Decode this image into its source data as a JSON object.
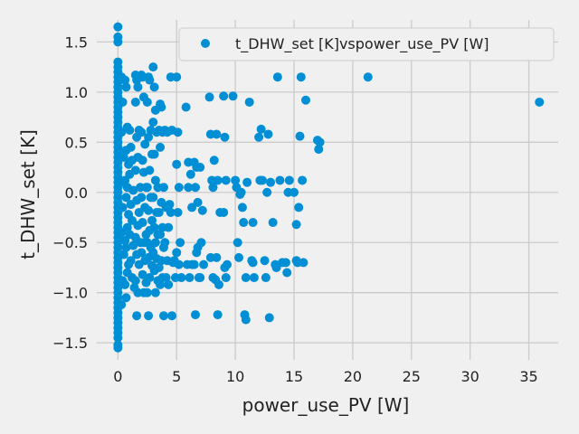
{
  "chart_data": {
    "type": "scatter",
    "title": "",
    "xlabel": "power_use_PV [W]",
    "ylabel": "t_DHW_set [K]",
    "xlim": [
      -1.8,
      37.5
    ],
    "ylim": [
      -1.67,
      1.72
    ],
    "xticks": [
      0,
      5,
      10,
      15,
      20,
      25,
      30,
      35
    ],
    "yticks": [
      -1.5,
      -1.0,
      -0.5,
      0.0,
      0.5,
      1.0,
      1.5
    ],
    "xtick_labels": [
      "0",
      "5",
      "10",
      "15",
      "20",
      "25",
      "30",
      "35"
    ],
    "ytick_labels": [
      "−1.5",
      "−1.0",
      "−0.5",
      "0.0",
      "0.5",
      "1.0",
      "1.5"
    ],
    "grid": true,
    "legend": {
      "position": "top-right",
      "entries": [
        "t_DHW_set [K]vspower_use_PV [W]"
      ]
    },
    "colors": {
      "marker": "#008fd5",
      "background": "#f0f0f0",
      "grid": "#cbcbcb",
      "text": "#222222"
    },
    "series": [
      {
        "name": "t_DHW_set [K]vspower_use_PV [W]",
        "points": [
          [
            0,
            1.65
          ],
          [
            0,
            1.55
          ],
          [
            0,
            1.5
          ],
          [
            0,
            1.3
          ],
          [
            0,
            1.25
          ],
          [
            0,
            1.2
          ],
          [
            0,
            1.15
          ],
          [
            0,
            1.1
          ],
          [
            0,
            1.05
          ],
          [
            0,
            1.0
          ],
          [
            0,
            0.95
          ],
          [
            0,
            0.9
          ],
          [
            0,
            0.85
          ],
          [
            0,
            0.8
          ],
          [
            0,
            0.75
          ],
          [
            0,
            0.7
          ],
          [
            0,
            0.65
          ],
          [
            0,
            0.6
          ],
          [
            0,
            0.55
          ],
          [
            0,
            0.5
          ],
          [
            0,
            0.45
          ],
          [
            0,
            0.4
          ],
          [
            0,
            0.35
          ],
          [
            0,
            0.3
          ],
          [
            0,
            0.25
          ],
          [
            0,
            0.2
          ],
          [
            0,
            0.15
          ],
          [
            0,
            0.1
          ],
          [
            0,
            0.05
          ],
          [
            0,
            0.0
          ],
          [
            0,
            -0.05
          ],
          [
            0,
            -0.1
          ],
          [
            0,
            -0.15
          ],
          [
            0,
            -0.2
          ],
          [
            0,
            -0.25
          ],
          [
            0,
            -0.3
          ],
          [
            0,
            -0.35
          ],
          [
            0,
            -0.4
          ],
          [
            0,
            -0.45
          ],
          [
            0,
            -0.5
          ],
          [
            0,
            -0.55
          ],
          [
            0,
            -0.6
          ],
          [
            0,
            -0.65
          ],
          [
            0,
            -0.7
          ],
          [
            0,
            -0.75
          ],
          [
            0,
            -0.8
          ],
          [
            0,
            -0.85
          ],
          [
            0,
            -0.9
          ],
          [
            0,
            -0.95
          ],
          [
            0,
            -1.0
          ],
          [
            0,
            -1.05
          ],
          [
            0,
            -1.1
          ],
          [
            0,
            -1.15
          ],
          [
            0,
            -1.2
          ],
          [
            0,
            -1.25
          ],
          [
            0,
            -1.3
          ],
          [
            0,
            -1.35
          ],
          [
            0,
            -1.4
          ],
          [
            0,
            -1.45
          ],
          [
            0,
            -1.52
          ],
          [
            0,
            -1.55
          ],
          [
            0.3,
            1.15
          ],
          [
            0.4,
            0.9
          ],
          [
            0.3,
            0.6
          ],
          [
            0.5,
            0.35
          ],
          [
            0.3,
            0.1
          ],
          [
            0.4,
            -0.15
          ],
          [
            0.3,
            -0.4
          ],
          [
            0.5,
            -0.62
          ],
          [
            0.4,
            -0.88
          ],
          [
            0.3,
            -1.12
          ],
          [
            0.6,
            1.12
          ],
          [
            0.7,
            1.05
          ],
          [
            0.8,
            0.65
          ],
          [
            0.7,
            0.42
          ],
          [
            0.9,
            0.28
          ],
          [
            0.6,
            0.12
          ],
          [
            0.8,
            0.05
          ],
          [
            0.7,
            -0.05
          ],
          [
            0.9,
            -0.22
          ],
          [
            0.8,
            -0.35
          ],
          [
            0.6,
            -0.48
          ],
          [
            0.7,
            -0.55
          ],
          [
            0.9,
            -0.72
          ],
          [
            0.8,
            -0.8
          ],
          [
            0.6,
            -0.92
          ],
          [
            0.7,
            -1.05
          ],
          [
            1.0,
            0.62
          ],
          [
            1.1,
            0.45
          ],
          [
            1.2,
            0.32
          ],
          [
            1.0,
            0.18
          ],
          [
            1.3,
            0.02
          ],
          [
            1.1,
            -0.12
          ],
          [
            1.2,
            -0.28
          ],
          [
            1.0,
            -0.42
          ],
          [
            1.3,
            -0.53
          ],
          [
            1.1,
            -0.68
          ],
          [
            1.2,
            -0.85
          ],
          [
            1.4,
            -0.95
          ],
          [
            1.5,
            1.17
          ],
          [
            1.6,
            1.12
          ],
          [
            1.7,
            1.05
          ],
          [
            1.5,
            0.9
          ],
          [
            1.8,
            0.62
          ],
          [
            1.6,
            0.55
          ],
          [
            1.7,
            0.35
          ],
          [
            1.5,
            0.22
          ],
          [
            1.9,
            0.05
          ],
          [
            1.6,
            -0.08
          ],
          [
            1.8,
            -0.2
          ],
          [
            1.7,
            -0.33
          ],
          [
            1.5,
            -0.45
          ],
          [
            1.9,
            -0.5
          ],
          [
            1.6,
            -0.62
          ],
          [
            1.8,
            -0.72
          ],
          [
            1.5,
            -0.88
          ],
          [
            1.7,
            -1.0
          ],
          [
            1.6,
            -1.23
          ],
          [
            2.0,
            1.17
          ],
          [
            2.1,
            1.15
          ],
          [
            2.2,
            0.95
          ],
          [
            2.0,
            0.6
          ],
          [
            2.3,
            0.48
          ],
          [
            2.1,
            0.32
          ],
          [
            2.2,
            0.2
          ],
          [
            2.4,
            0.05
          ],
          [
            2.0,
            -0.05
          ],
          [
            2.3,
            -0.15
          ],
          [
            2.1,
            -0.3
          ],
          [
            2.4,
            -0.42
          ],
          [
            2.2,
            -0.5
          ],
          [
            2.0,
            -0.6
          ],
          [
            2.3,
            -0.68
          ],
          [
            2.1,
            -0.82
          ],
          [
            2.4,
            -0.9
          ],
          [
            2.2,
            -1.0
          ],
          [
            2.6,
            1.15
          ],
          [
            2.7,
            1.12
          ],
          [
            2.5,
            0.9
          ],
          [
            2.8,
            0.62
          ],
          [
            2.6,
            0.55
          ],
          [
            2.9,
            0.38
          ],
          [
            2.7,
            0.22
          ],
          [
            2.5,
            0.05
          ],
          [
            2.8,
            -0.05
          ],
          [
            2.6,
            -0.18
          ],
          [
            2.9,
            -0.28
          ],
          [
            2.7,
            -0.38
          ],
          [
            2.5,
            -0.5
          ],
          [
            2.8,
            -0.55
          ],
          [
            2.6,
            -0.65
          ],
          [
            2.9,
            -0.73
          ],
          [
            2.7,
            -0.85
          ],
          [
            2.5,
            -1.0
          ],
          [
            2.6,
            -1.23
          ],
          [
            3.0,
            1.25
          ],
          [
            3.1,
            1.05
          ],
          [
            3.2,
            0.82
          ],
          [
            3.0,
            0.7
          ],
          [
            3.3,
            0.6
          ],
          [
            3.1,
            0.38
          ],
          [
            3.2,
            0.12
          ],
          [
            3.4,
            0.05
          ],
          [
            3.0,
            -0.05
          ],
          [
            3.3,
            -0.2
          ],
          [
            3.1,
            -0.35
          ],
          [
            3.4,
            -0.42
          ],
          [
            3.2,
            -0.5
          ],
          [
            3.0,
            -0.6
          ],
          [
            3.3,
            -0.66
          ],
          [
            3.1,
            -0.78
          ],
          [
            3.4,
            -0.88
          ],
          [
            3.2,
            -1.0
          ],
          [
            3.6,
            0.88
          ],
          [
            3.7,
            0.85
          ],
          [
            3.5,
            0.62
          ],
          [
            3.8,
            0.6
          ],
          [
            3.6,
            0.45
          ],
          [
            3.9,
            0.05
          ],
          [
            3.7,
            -0.1
          ],
          [
            3.5,
            -0.2
          ],
          [
            3.8,
            -0.35
          ],
          [
            3.6,
            -0.42
          ],
          [
            3.9,
            -0.55
          ],
          [
            3.7,
            -0.68
          ],
          [
            3.5,
            -0.75
          ],
          [
            3.8,
            -0.85
          ],
          [
            3.6,
            -0.92
          ],
          [
            3.9,
            -1.23
          ],
          [
            4.0,
            0.62
          ],
          [
            4.2,
            0.6
          ],
          [
            4.1,
            -0.15
          ],
          [
            4.3,
            -0.35
          ],
          [
            4.0,
            -0.5
          ],
          [
            4.2,
            -0.68
          ],
          [
            4.1,
            -0.85
          ],
          [
            4.3,
            -0.92
          ],
          [
            4.4,
            -0.12
          ],
          [
            4.5,
            1.15
          ],
          [
            4.6,
            0.62
          ],
          [
            4.5,
            -0.2
          ],
          [
            4.7,
            -0.7
          ],
          [
            4.6,
            -1.23
          ],
          [
            4.8,
            -0.68
          ],
          [
            4.9,
            -0.85
          ],
          [
            5.0,
            1.15
          ],
          [
            5.1,
            0.6
          ],
          [
            5.0,
            0.28
          ],
          [
            5.2,
            0.05
          ],
          [
            5.1,
            -0.2
          ],
          [
            5.3,
            -0.5
          ],
          [
            5.0,
            -0.6
          ],
          [
            5.2,
            -0.72
          ],
          [
            5.4,
            -0.85
          ],
          [
            5.8,
            0.85
          ],
          [
            6.0,
            0.3
          ],
          [
            6.2,
            0.18
          ],
          [
            6.0,
            0.05
          ],
          [
            6.3,
            -0.15
          ],
          [
            5.9,
            -0.72
          ],
          [
            6.1,
            -0.85
          ],
          [
            6.3,
            -0.72
          ],
          [
            6.5,
            0.3
          ],
          [
            6.7,
            0.25
          ],
          [
            6.6,
            0.05
          ],
          [
            6.8,
            -0.1
          ],
          [
            6.5,
            -0.72
          ],
          [
            6.7,
            -0.6
          ],
          [
            6.9,
            -0.85
          ],
          [
            6.8,
            -0.55
          ],
          [
            6.6,
            -1.22
          ],
          [
            7.0,
            0.25
          ],
          [
            7.2,
            -0.18
          ],
          [
            7.1,
            -0.5
          ],
          [
            7.3,
            -0.72
          ],
          [
            7.0,
            -0.85
          ],
          [
            7.8,
            0.95
          ],
          [
            7.9,
            0.58
          ],
          [
            8.0,
            0.12
          ],
          [
            8.1,
            0.05
          ],
          [
            7.9,
            -0.65
          ],
          [
            8.1,
            -0.85
          ],
          [
            8.3,
            -0.87
          ],
          [
            8.2,
            0.32
          ],
          [
            8.4,
            0.58
          ],
          [
            8.5,
            0.12
          ],
          [
            8.7,
            -0.2
          ],
          [
            8.4,
            -0.65
          ],
          [
            8.6,
            -0.92
          ],
          [
            8.5,
            -1.22
          ],
          [
            9.0,
            0.96
          ],
          [
            9.1,
            0.55
          ],
          [
            9.2,
            0.12
          ],
          [
            9.0,
            -0.2
          ],
          [
            9.3,
            -0.72
          ],
          [
            9.1,
            -0.75
          ],
          [
            9.2,
            -0.85
          ],
          [
            9.8,
            0.96
          ],
          [
            10.0,
            0.12
          ],
          [
            10.1,
            0.05
          ],
          [
            10.2,
            -0.5
          ],
          [
            10.3,
            -0.65
          ],
          [
            10.5,
            0.0
          ],
          [
            10.4,
            -0.02
          ],
          [
            10.6,
            -0.15
          ],
          [
            10.7,
            -0.3
          ],
          [
            10.8,
            -1.22
          ],
          [
            10.9,
            -1.27
          ],
          [
            10.9,
            -0.85
          ],
          [
            11.2,
            0.9
          ],
          [
            11.0,
            0.1
          ],
          [
            11.4,
            -0.68
          ],
          [
            11.5,
            -0.7
          ],
          [
            11.6,
            -0.85
          ],
          [
            11.5,
            -0.3
          ],
          [
            12.0,
            0.55
          ],
          [
            12.2,
            0.63
          ],
          [
            12.1,
            0.12
          ],
          [
            12.3,
            0.12
          ],
          [
            12.5,
            -0.68
          ],
          [
            12.6,
            -0.85
          ],
          [
            12.8,
            0.58
          ],
          [
            12.7,
            0.0
          ],
          [
            12.9,
            -1.25
          ],
          [
            13.0,
            0.1
          ],
          [
            13.2,
            -0.3
          ],
          [
            13.4,
            -0.72
          ],
          [
            13.5,
            -0.75
          ],
          [
            13.6,
            1.15
          ],
          [
            13.8,
            0.12
          ],
          [
            14.0,
            -0.7
          ],
          [
            14.3,
            -0.7
          ],
          [
            14.6,
            0.12
          ],
          [
            14.5,
            0.0
          ],
          [
            14.4,
            -0.8
          ],
          [
            15.0,
            0.0
          ],
          [
            15.2,
            -0.68
          ],
          [
            15.3,
            -0.7
          ],
          [
            15.4,
            -0.15
          ],
          [
            15.5,
            0.56
          ],
          [
            15.6,
            1.15
          ],
          [
            15.7,
            0.12
          ],
          [
            15.8,
            -0.7
          ],
          [
            15.2,
            -0.32
          ],
          [
            16.0,
            0.92
          ],
          [
            17.0,
            0.52
          ],
          [
            17.1,
            0.43
          ],
          [
            17.2,
            0.5
          ],
          [
            21.3,
            1.15
          ],
          [
            35.9,
            0.9
          ]
        ]
      }
    ]
  }
}
